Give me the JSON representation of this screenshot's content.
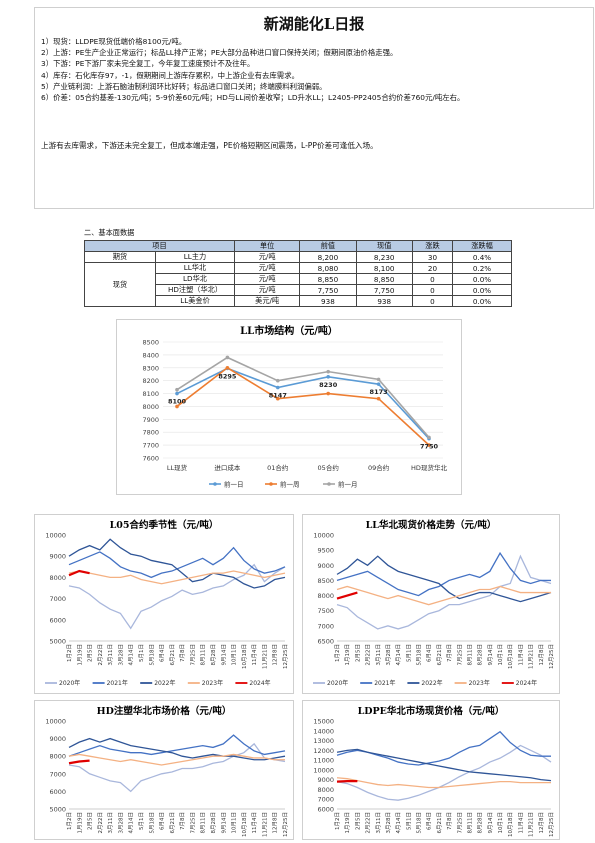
{
  "report": {
    "title": "新湖能化L日报",
    "lines": [
      "1）现货：LLDPE现货低端价格8100元/吨。",
      "2）上游：PE生产企业正常运行；标品LL排产正常；PE大部分品种进口窗口保持关闭；假期间原油价格走强。",
      "3）下游：PE下游厂家未完全复工，今年复工速度预计不及往年。",
      "4）库存：石化库存97，-1，假期期间上游库存累积，中上游企业有去库需求。",
      "5）产业链利润：上游石脑油制利润环比好转；标品进口窗口关闭；终端膜料利润偏弱。",
      "6）价差：05合约基差-130元/吨；5-9价差60元/吨；HD与LL间价差收窄；LD升水LL；L2405-PP2405合约价差760元/吨左右。"
    ],
    "summary": "上游有去库需求，下游还未完全复工，但成本端走强，PE价格短期区间震荡，L-PP价差可逢低入场。"
  },
  "fundamentals": {
    "section_title": "二、基本面数据",
    "headers": [
      "项目",
      "单位",
      "前值",
      "现值",
      "涨跌",
      "涨跌幅"
    ],
    "rows": [
      {
        "group": "期货",
        "item": "LL主力",
        "unit": "元/吨",
        "prev": "8,200",
        "curr": "8,230",
        "chg": "30",
        "pct": "0.4%"
      },
      {
        "group": "现货",
        "item": "LL华北",
        "unit": "元/吨",
        "prev": "8,080",
        "curr": "8,100",
        "chg": "20",
        "pct": "0.2%"
      },
      {
        "group": "",
        "item": "LD华北",
        "unit": "元/吨",
        "prev": "8,850",
        "curr": "8,850",
        "chg": "0",
        "pct": "0.0%"
      },
      {
        "group": "",
        "item": "HD注塑（华北）",
        "unit": "元/吨",
        "prev": "7,750",
        "curr": "7,750",
        "chg": "0",
        "pct": "0.0%"
      },
      {
        "group": "",
        "item": "LL美金价",
        "unit": "美元/吨",
        "prev": "938",
        "curr": "938",
        "chg": "0",
        "pct": "0.0%"
      }
    ]
  },
  "chart_data": [
    {
      "type": "line",
      "title": "LL市场结构（元/吨）",
      "categories": [
        "LL现货",
        "进口成本",
        "01合约",
        "05合约",
        "09合约",
        "HD现货华北"
      ],
      "ylim": [
        7600,
        8500
      ],
      "yticks": [
        7600,
        7700,
        7800,
        7900,
        8000,
        8100,
        8200,
        8300,
        8400,
        8500
      ],
      "legend": "bottom",
      "colors": [
        "#5b9bd5",
        "#ed7d31",
        "#a5a5a5"
      ],
      "series": [
        {
          "name": "前一日",
          "values": [
            8100,
            8295,
            8147,
            8230,
            8173,
            7750
          ]
        },
        {
          "name": "前一周",
          "values": [
            8000,
            8300,
            8060,
            8100,
            8060,
            7700
          ]
        },
        {
          "name": "前一月",
          "values": [
            8130,
            8380,
            8200,
            8270,
            8210,
            7760
          ]
        }
      ],
      "data_labels": [
        "8100",
        "8295",
        "8147",
        "8230",
        "8173",
        "7750"
      ]
    },
    {
      "type": "line",
      "title": "L05合约季节性（元/吨）",
      "ylim": [
        5000,
        10000
      ],
      "yticks": [
        5000,
        6000,
        7000,
        8000,
        9000,
        10000
      ],
      "xticks": [
        "1月2日",
        "1月19日",
        "2月5日",
        "2月22日",
        "3月11日",
        "3月28日",
        "4月14日",
        "5月1日",
        "5月18日",
        "6月4日",
        "6月21日",
        "7月8日",
        "7月25日",
        "8月11日",
        "8月28日",
        "9月14日",
        "10月1日",
        "10月18日",
        "11月4日",
        "11月21日",
        "12月8日",
        "12月25日"
      ],
      "legend": "bottom",
      "series": [
        {
          "name": "2020年",
          "color": "#a9b7dc",
          "values": [
            7600,
            7500,
            7200,
            6800,
            6500,
            6300,
            5600,
            6400,
            6600,
            6900,
            7100,
            7400,
            7200,
            7300,
            7500,
            7600,
            7900,
            8100,
            8600,
            7800,
            8200,
            8500
          ]
        },
        {
          "name": "2021年",
          "color": "#4472c4",
          "values": [
            8600,
            8800,
            9000,
            9200,
            8900,
            8500,
            8300,
            8200,
            8000,
            8200,
            8300,
            8500,
            8700,
            8900,
            8600,
            8900,
            9400,
            8800,
            8400,
            8200,
            8300,
            8500
          ]
        },
        {
          "name": "2022年",
          "color": "#2f5597",
          "values": [
            9000,
            9300,
            9500,
            9300,
            9800,
            9400,
            9100,
            9000,
            8800,
            8700,
            8600,
            8200,
            7800,
            7900,
            8200,
            8100,
            8000,
            7700,
            7500,
            7600,
            7900,
            8000
          ]
        },
        {
          "name": "2023年",
          "color": "#f4b183",
          "values": [
            8200,
            8300,
            8200,
            8100,
            8000,
            8000,
            8100,
            7900,
            7800,
            7700,
            7800,
            7900,
            8000,
            8100,
            8200,
            8200,
            8300,
            8200,
            8100,
            8000,
            8100,
            8200
          ]
        },
        {
          "name": "2024年",
          "color": "#e00000",
          "values": [
            8100,
            8300,
            8200,
            null,
            null,
            null,
            null,
            null,
            null,
            null,
            null,
            null,
            null,
            null,
            null,
            null,
            null,
            null,
            null,
            null,
            null,
            null
          ]
        }
      ]
    },
    {
      "type": "line",
      "title": "LL华北现货价格走势（元/吨）",
      "ylim": [
        6500,
        10000
      ],
      "yticks": [
        6500,
        7000,
        7500,
        8000,
        8500,
        9000,
        9500,
        10000
      ],
      "xticks": [
        "1月2日",
        "1月19日",
        "2月5日",
        "2月22日",
        "3月11日",
        "3月28日",
        "4月14日",
        "5月1日",
        "5月18日",
        "6月4日",
        "6月21日",
        "7月8日",
        "7月25日",
        "8月11日",
        "8月28日",
        "9月14日",
        "10月1日",
        "10月18日",
        "11月4日",
        "11月21日",
        "12月8日",
        "12月25日"
      ],
      "legend": "bottom",
      "series": [
        {
          "name": "2020年",
          "color": "#a9b7dc",
          "values": [
            7700,
            7600,
            7300,
            7100,
            6900,
            7000,
            6900,
            7000,
            7200,
            7400,
            7500,
            7700,
            7700,
            7800,
            7900,
            8000,
            8300,
            8400,
            9300,
            8600,
            8500,
            8400
          ]
        },
        {
          "name": "2021年",
          "color": "#4472c4",
          "values": [
            8500,
            8600,
            8700,
            8800,
            8600,
            8400,
            8200,
            8100,
            8000,
            8200,
            8300,
            8500,
            8600,
            8700,
            8600,
            8800,
            9400,
            8900,
            8500,
            8400,
            8500,
            8500
          ]
        },
        {
          "name": "2022年",
          "color": "#2f5597",
          "values": [
            8700,
            8900,
            9200,
            9000,
            9300,
            9000,
            8800,
            8700,
            8600,
            8500,
            8400,
            8100,
            7900,
            8000,
            8100,
            8100,
            8000,
            7900,
            7800,
            7900,
            8000,
            8100
          ]
        },
        {
          "name": "2023年",
          "color": "#f4b183",
          "values": [
            8200,
            8300,
            8200,
            8100,
            8000,
            7900,
            8000,
            7900,
            7800,
            7700,
            7800,
            7900,
            8000,
            8100,
            8200,
            8200,
            8300,
            8200,
            8100,
            8100,
            8100,
            8100
          ]
        },
        {
          "name": "2024年",
          "color": "#e00000",
          "values": [
            7900,
            8000,
            8100,
            null,
            null,
            null,
            null,
            null,
            null,
            null,
            null,
            null,
            null,
            null,
            null,
            null,
            null,
            null,
            null,
            null,
            null,
            null
          ]
        }
      ]
    },
    {
      "type": "line",
      "title": "HD注塑华北市场价格（元/吨）",
      "ylim": [
        5000,
        10000
      ],
      "yticks": [
        5000,
        6000,
        7000,
        8000,
        9000,
        10000
      ],
      "xticks": [
        "1月2日",
        "1月19日",
        "2月5日",
        "2月22日",
        "3月11日",
        "3月28日",
        "4月14日",
        "5月1日",
        "5月18日",
        "6月4日",
        "6月21日",
        "7月8日",
        "7月25日",
        "8月11日",
        "8月28日",
        "9月14日",
        "10月1日",
        "10月18日",
        "11月4日",
        "11月21日",
        "12月8日",
        "12月25日"
      ],
      "legend": "none",
      "series": [
        {
          "name": "2020年",
          "color": "#a9b7dc",
          "values": [
            7500,
            7400,
            7000,
            6800,
            6600,
            6500,
            6000,
            6600,
            6800,
            7000,
            7100,
            7300,
            7300,
            7400,
            7600,
            7700,
            8000,
            8200,
            8700,
            7900,
            7800,
            7700
          ]
        },
        {
          "name": "2021年",
          "color": "#4472c4",
          "values": [
            8000,
            8200,
            8400,
            8600,
            8400,
            8300,
            8200,
            8200,
            8100,
            8200,
            8300,
            8400,
            8500,
            8600,
            8500,
            8700,
            9200,
            8700,
            8300,
            8100,
            8200,
            8300
          ]
        },
        {
          "name": "2022年",
          "color": "#2f5597",
          "values": [
            8500,
            8800,
            9000,
            8800,
            9000,
            8800,
            8600,
            8500,
            8400,
            8300,
            8200,
            8000,
            7900,
            8000,
            8100,
            8000,
            8000,
            7900,
            7800,
            7800,
            7900,
            8000
          ]
        },
        {
          "name": "2023年",
          "color": "#f4b183",
          "values": [
            8000,
            8100,
            8000,
            7900,
            7800,
            7700,
            7800,
            7700,
            7600,
            7500,
            7600,
            7700,
            7800,
            7900,
            8000,
            8000,
            8100,
            8000,
            7900,
            7900,
            7800,
            7800
          ]
        },
        {
          "name": "2024年",
          "color": "#e00000",
          "values": [
            7600,
            7700,
            7750,
            null,
            null,
            null,
            null,
            null,
            null,
            null,
            null,
            null,
            null,
            null,
            null,
            null,
            null,
            null,
            null,
            null,
            null,
            null
          ]
        }
      ]
    },
    {
      "type": "line",
      "title": "LDPE华北市场现货价格（元/吨）",
      "ylim": [
        6000,
        15000
      ],
      "yticks": [
        6000,
        7000,
        8000,
        9000,
        10000,
        11000,
        12000,
        13000,
        14000,
        15000
      ],
      "xticks": [
        "1月2日",
        "1月19日",
        "2月5日",
        "2月22日",
        "3月11日",
        "3月28日",
        "4月14日",
        "5月1日",
        "5月18日",
        "6月4日",
        "6月21日",
        "7月8日",
        "7月25日",
        "8月11日",
        "8月28日",
        "9月14日",
        "10月1日",
        "10月18日",
        "11月4日",
        "11月21日",
        "12月8日",
        "12月25日"
      ],
      "legend": "none",
      "series": [
        {
          "name": "2020年",
          "color": "#a9b7dc",
          "values": [
            8800,
            8600,
            8200,
            7700,
            7300,
            7000,
            6900,
            7100,
            7400,
            7800,
            8200,
            8700,
            9300,
            9800,
            10200,
            10800,
            11200,
            11800,
            12500,
            12000,
            11500,
            10800
          ]
        },
        {
          "name": "2021年",
          "color": "#4472c4",
          "values": [
            11500,
            11800,
            12000,
            11800,
            11500,
            11200,
            10800,
            10600,
            10500,
            10700,
            10900,
            11200,
            11800,
            12300,
            12500,
            13200,
            13900,
            12800,
            12000,
            11500,
            11400,
            11400
          ]
        },
        {
          "name": "2022年",
          "color": "#2f5597",
          "values": [
            11800,
            12000,
            12100,
            11800,
            11600,
            11400,
            11200,
            11000,
            10800,
            10600,
            10400,
            10200,
            10000,
            9800,
            9700,
            9600,
            9500,
            9400,
            9300,
            9200,
            9000,
            8900
          ]
        },
        {
          "name": "2023年",
          "color": "#f4b183",
          "values": [
            9200,
            9100,
            8900,
            8700,
            8500,
            8400,
            8500,
            8400,
            8300,
            8200,
            8200,
            8300,
            8400,
            8500,
            8600,
            8700,
            8800,
            8800,
            8700,
            8700,
            8700,
            8700
          ]
        },
        {
          "name": "2024年",
          "color": "#e00000",
          "values": [
            8800,
            8850,
            8850,
            null,
            null,
            null,
            null,
            null,
            null,
            null,
            null,
            null,
            null,
            null,
            null,
            null,
            null,
            null,
            null,
            null,
            null,
            null
          ]
        }
      ]
    }
  ]
}
